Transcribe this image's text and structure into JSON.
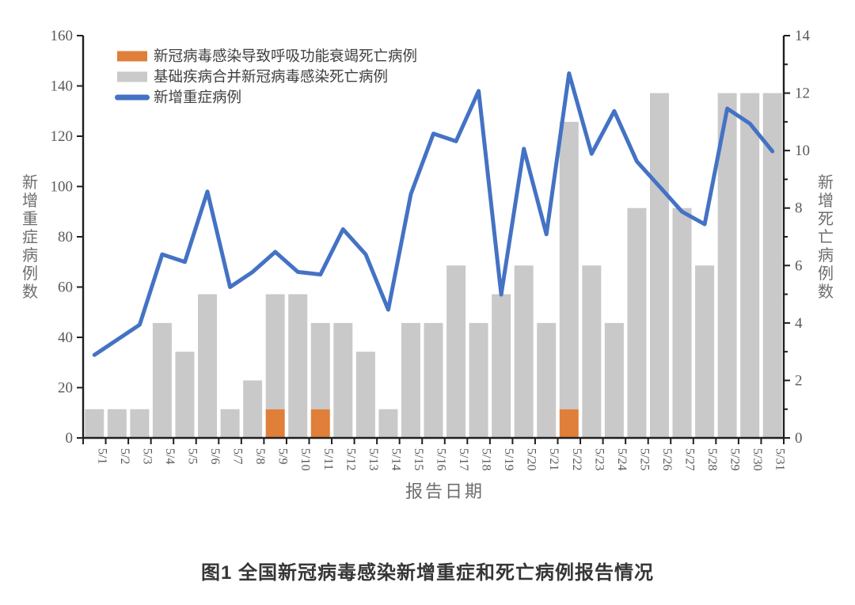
{
  "page": {
    "caption": "图1 全国新冠病毒感染新增重症和死亡病例报告情况"
  },
  "chart_data": {
    "type": "bar+line",
    "title": "",
    "caption": "图1 全国新冠病毒感染新增重症和死亡病例报告情况",
    "categories": [
      "5/1",
      "5/2",
      "5/3",
      "5/4",
      "5/5",
      "5/6",
      "5/7",
      "5/8",
      "5/9",
      "5/10",
      "5/11",
      "5/12",
      "5/13",
      "5/14",
      "5/15",
      "5/16",
      "5/17",
      "5/18",
      "5/19",
      "5/20",
      "5/21",
      "5/22",
      "5/23",
      "5/24",
      "5/25",
      "5/26",
      "5/27",
      "5/28",
      "5/29",
      "5/30",
      "5/31"
    ],
    "series": [
      {
        "name": "新冠病毒感染导致呼吸功能衰竭死亡病例",
        "type": "bar",
        "stack": "deaths",
        "axis": "right",
        "color": "#DF7F3A",
        "values": [
          0,
          0,
          0,
          0,
          0,
          0,
          0,
          0,
          1,
          0,
          1,
          0,
          0,
          0,
          0,
          0,
          0,
          0,
          0,
          0,
          0,
          1,
          0,
          0,
          0,
          0,
          0,
          0,
          0,
          0,
          0
        ]
      },
      {
        "name": "基础疾病合并新冠病毒感染死亡病例",
        "type": "bar",
        "stack": "deaths",
        "axis": "right",
        "color": "#C9C9C9",
        "values": [
          1,
          1,
          1,
          4,
          3,
          5,
          1,
          2,
          4,
          5,
          3,
          4,
          3,
          1,
          4,
          4,
          6,
          4,
          5,
          6,
          4,
          10,
          6,
          4,
          8,
          12,
          8,
          6,
          12,
          12,
          12
        ]
      },
      {
        "name": "新增重症病例",
        "type": "line",
        "axis": "left",
        "color": "#4472C4",
        "values": [
          33,
          39,
          45,
          73,
          70,
          98,
          60,
          66,
          74,
          66,
          65,
          83,
          73,
          51,
          97,
          121,
          118,
          138,
          57,
          115,
          81,
          145,
          113,
          130,
          110,
          100,
          90,
          85,
          131,
          125,
          114
        ]
      }
    ],
    "left_axis": {
      "title": "新增重症病例数",
      "min": 0,
      "max": 160,
      "step": 20
    },
    "right_axis": {
      "title": "新增死亡病例数",
      "min": 0,
      "max": 14,
      "step": 2,
      "minor_step": 1
    },
    "x_axis": {
      "title": "报告日期"
    },
    "legend_position": "top-left",
    "grid": false,
    "colors": {
      "axis_line": "#1f1f1f",
      "tick_label": "#595959",
      "axis_title": "#6e6e6e",
      "legend_text": "#3f3f3f"
    }
  }
}
